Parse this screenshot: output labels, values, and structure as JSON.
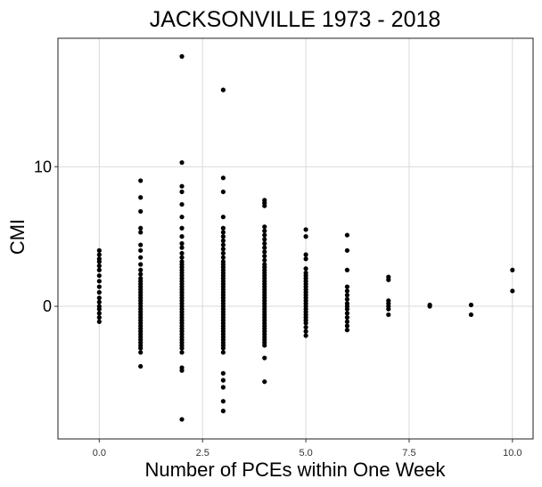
{
  "chart_data": {
    "type": "scatter",
    "title": "JACKSONVILLE 1973 - 2018",
    "xlabel": "Number of PCEs within One Week",
    "ylabel": "CMI",
    "xlim": [
      -1.0,
      10.5
    ],
    "ylim": [
      -9.5,
      19.2
    ],
    "x_ticks": [
      0,
      2.5,
      5,
      7.5,
      10
    ],
    "x_tick_labels": [
      "0.0",
      "2.5",
      "5.0",
      "7.5",
      "10.0"
    ],
    "y_ticks": [
      0,
      10
    ],
    "y_tick_labels": [
      "0",
      "10"
    ],
    "grid": true,
    "legend": "none",
    "point_color": "#000000",
    "series": [
      {
        "points": [
          [
            0,
            4.0
          ],
          [
            0,
            3.7
          ],
          [
            0,
            3.4
          ],
          [
            0,
            3.2
          ],
          [
            0,
            2.9
          ],
          [
            0,
            2.6
          ],
          [
            0,
            2.2
          ],
          [
            0,
            1.8
          ],
          [
            0,
            1.4
          ],
          [
            0,
            1.0
          ],
          [
            0,
            0.6
          ],
          [
            0,
            0.3
          ],
          [
            0,
            0.0
          ],
          [
            0,
            -0.2
          ],
          [
            0,
            -0.5
          ],
          [
            0,
            -0.8
          ],
          [
            0,
            -1.1
          ],
          [
            1,
            9.0
          ],
          [
            1,
            7.8
          ],
          [
            1,
            6.8
          ],
          [
            1,
            5.6
          ],
          [
            1,
            5.3
          ],
          [
            1,
            4.4
          ],
          [
            1,
            4.0
          ],
          [
            1,
            3.5
          ],
          [
            1,
            3.0
          ],
          [
            1,
            2.6
          ],
          [
            1,
            2.3
          ],
          [
            1,
            2.0
          ],
          [
            1,
            1.8
          ],
          [
            1,
            1.6
          ],
          [
            1,
            1.4
          ],
          [
            1,
            1.2
          ],
          [
            1,
            1.0
          ],
          [
            1,
            0.8
          ],
          [
            1,
            0.6
          ],
          [
            1,
            0.4
          ],
          [
            1,
            0.2
          ],
          [
            1,
            0.0
          ],
          [
            1,
            -0.2
          ],
          [
            1,
            -0.4
          ],
          [
            1,
            -0.6
          ],
          [
            1,
            -0.8
          ],
          [
            1,
            -1.0
          ],
          [
            1,
            -1.2
          ],
          [
            1,
            -1.4
          ],
          [
            1,
            -1.6
          ],
          [
            1,
            -1.8
          ],
          [
            1,
            -2.0
          ],
          [
            1,
            -2.2
          ],
          [
            1,
            -2.4
          ],
          [
            1,
            -2.6
          ],
          [
            1,
            -2.8
          ],
          [
            1,
            -3.0
          ],
          [
            1,
            -3.3
          ],
          [
            1,
            -4.3
          ],
          [
            2,
            17.9
          ],
          [
            2,
            10.3
          ],
          [
            2,
            8.6
          ],
          [
            2,
            8.2
          ],
          [
            2,
            7.3
          ],
          [
            2,
            6.4
          ],
          [
            2,
            5.6
          ],
          [
            2,
            5.0
          ],
          [
            2,
            4.5
          ],
          [
            2,
            4.2
          ],
          [
            2,
            3.8
          ],
          [
            2,
            3.5
          ],
          [
            2,
            3.2
          ],
          [
            2,
            3.0
          ],
          [
            2,
            2.8
          ],
          [
            2,
            2.6
          ],
          [
            2,
            2.4
          ],
          [
            2,
            2.2
          ],
          [
            2,
            2.0
          ],
          [
            2,
            1.8
          ],
          [
            2,
            1.6
          ],
          [
            2,
            1.4
          ],
          [
            2,
            1.2
          ],
          [
            2,
            1.0
          ],
          [
            2,
            0.8
          ],
          [
            2,
            0.6
          ],
          [
            2,
            0.4
          ],
          [
            2,
            0.2
          ],
          [
            2,
            0.0
          ],
          [
            2,
            -0.2
          ],
          [
            2,
            -0.4
          ],
          [
            2,
            -0.6
          ],
          [
            2,
            -0.8
          ],
          [
            2,
            -1.0
          ],
          [
            2,
            -1.2
          ],
          [
            2,
            -1.4
          ],
          [
            2,
            -1.6
          ],
          [
            2,
            -1.8
          ],
          [
            2,
            -2.0
          ],
          [
            2,
            -2.2
          ],
          [
            2,
            -2.4
          ],
          [
            2,
            -2.6
          ],
          [
            2,
            -2.8
          ],
          [
            2,
            -3.0
          ],
          [
            2,
            -3.3
          ],
          [
            2,
            -4.4
          ],
          [
            2,
            -4.6
          ],
          [
            2,
            -8.1
          ],
          [
            3,
            15.5
          ],
          [
            3,
            9.2
          ],
          [
            3,
            8.2
          ],
          [
            3,
            6.4
          ],
          [
            3,
            5.6
          ],
          [
            3,
            5.3
          ],
          [
            3,
            5.0
          ],
          [
            3,
            4.7
          ],
          [
            3,
            4.4
          ],
          [
            3,
            4.1
          ],
          [
            3,
            3.8
          ],
          [
            3,
            3.5
          ],
          [
            3,
            3.2
          ],
          [
            3,
            3.0
          ],
          [
            3,
            2.8
          ],
          [
            3,
            2.6
          ],
          [
            3,
            2.4
          ],
          [
            3,
            2.2
          ],
          [
            3,
            2.0
          ],
          [
            3,
            1.8
          ],
          [
            3,
            1.6
          ],
          [
            3,
            1.4
          ],
          [
            3,
            1.2
          ],
          [
            3,
            1.0
          ],
          [
            3,
            0.8
          ],
          [
            3,
            0.6
          ],
          [
            3,
            0.4
          ],
          [
            3,
            0.2
          ],
          [
            3,
            0.0
          ],
          [
            3,
            -0.2
          ],
          [
            3,
            -0.4
          ],
          [
            3,
            -0.6
          ],
          [
            3,
            -0.8
          ],
          [
            3,
            -1.0
          ],
          [
            3,
            -1.2
          ],
          [
            3,
            -1.4
          ],
          [
            3,
            -1.6
          ],
          [
            3,
            -1.8
          ],
          [
            3,
            -2.0
          ],
          [
            3,
            -2.2
          ],
          [
            3,
            -2.4
          ],
          [
            3,
            -2.6
          ],
          [
            3,
            -2.8
          ],
          [
            3,
            -3.0
          ],
          [
            3,
            -3.3
          ],
          [
            3,
            -4.8
          ],
          [
            3,
            -5.3
          ],
          [
            3,
            -5.8
          ],
          [
            3,
            -6.8
          ],
          [
            3,
            -7.5
          ],
          [
            4,
            7.6
          ],
          [
            4,
            7.4
          ],
          [
            4,
            7.2
          ],
          [
            4,
            5.7
          ],
          [
            4,
            5.4
          ],
          [
            4,
            5.1
          ],
          [
            4,
            4.8
          ],
          [
            4,
            4.5
          ],
          [
            4,
            4.2
          ],
          [
            4,
            3.9
          ],
          [
            4,
            3.6
          ],
          [
            4,
            3.3
          ],
          [
            4,
            3.0
          ],
          [
            4,
            2.8
          ],
          [
            4,
            2.6
          ],
          [
            4,
            2.4
          ],
          [
            4,
            2.2
          ],
          [
            4,
            2.0
          ],
          [
            4,
            1.8
          ],
          [
            4,
            1.6
          ],
          [
            4,
            1.4
          ],
          [
            4,
            1.2
          ],
          [
            4,
            1.0
          ],
          [
            4,
            0.8
          ],
          [
            4,
            0.6
          ],
          [
            4,
            0.4
          ],
          [
            4,
            0.2
          ],
          [
            4,
            0.0
          ],
          [
            4,
            -0.2
          ],
          [
            4,
            -0.4
          ],
          [
            4,
            -0.6
          ],
          [
            4,
            -0.8
          ],
          [
            4,
            -1.0
          ],
          [
            4,
            -1.2
          ],
          [
            4,
            -1.4
          ],
          [
            4,
            -1.6
          ],
          [
            4,
            -1.8
          ],
          [
            4,
            -2.0
          ],
          [
            4,
            -2.2
          ],
          [
            4,
            -2.4
          ],
          [
            4,
            -2.6
          ],
          [
            4,
            -2.8
          ],
          [
            4,
            -3.7
          ],
          [
            4,
            -5.4
          ],
          [
            5,
            5.5
          ],
          [
            5,
            5.0
          ],
          [
            5,
            3.7
          ],
          [
            5,
            3.4
          ],
          [
            5,
            2.7
          ],
          [
            5,
            2.4
          ],
          [
            5,
            2.2
          ],
          [
            5,
            2.0
          ],
          [
            5,
            1.8
          ],
          [
            5,
            1.6
          ],
          [
            5,
            1.4
          ],
          [
            5,
            1.2
          ],
          [
            5,
            1.0
          ],
          [
            5,
            0.8
          ],
          [
            5,
            0.6
          ],
          [
            5,
            0.4
          ],
          [
            5,
            0.2
          ],
          [
            5,
            0.0
          ],
          [
            5,
            -0.2
          ],
          [
            5,
            -0.4
          ],
          [
            5,
            -0.6
          ],
          [
            5,
            -0.8
          ],
          [
            5,
            -1.0
          ],
          [
            5,
            -1.2
          ],
          [
            5,
            -1.5
          ],
          [
            5,
            -1.8
          ],
          [
            5,
            -2.1
          ],
          [
            6,
            5.1
          ],
          [
            6,
            4.0
          ],
          [
            6,
            2.6
          ],
          [
            6,
            1.4
          ],
          [
            6,
            1.1
          ],
          [
            6,
            0.8
          ],
          [
            6,
            0.5
          ],
          [
            6,
            0.2
          ],
          [
            6,
            0.0
          ],
          [
            6,
            -0.2
          ],
          [
            6,
            -0.5
          ],
          [
            6,
            -0.8
          ],
          [
            6,
            -1.1
          ],
          [
            6,
            -1.4
          ],
          [
            6,
            -1.7
          ],
          [
            7,
            2.1
          ],
          [
            7,
            1.9
          ],
          [
            7,
            0.4
          ],
          [
            7,
            0.2
          ],
          [
            7,
            0.0
          ],
          [
            7,
            -0.2
          ],
          [
            7,
            -0.6
          ],
          [
            8,
            0.1
          ],
          [
            8,
            0.0
          ],
          [
            9,
            0.1
          ],
          [
            9,
            -0.6
          ],
          [
            10,
            2.6
          ],
          [
            10,
            1.1
          ]
        ]
      }
    ]
  }
}
